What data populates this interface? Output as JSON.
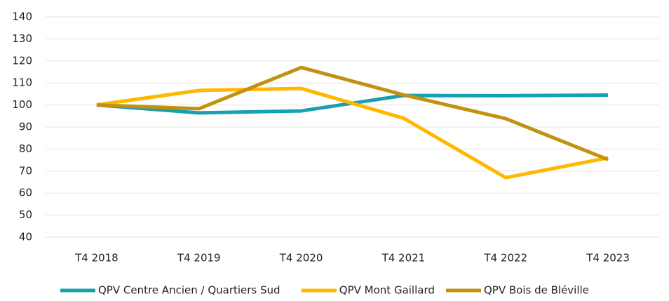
{
  "chart_data": {
    "type": "line",
    "categories": [
      "T4 2018",
      "T4 2019",
      "T4 2020",
      "T4 2021",
      "T4 2022",
      "T4 2023"
    ],
    "series": [
      {
        "name": "QPV Centre Ancien / Quartiers Sud",
        "color": "#1a9fae",
        "values": [
          100,
          96.4,
          97.3,
          104.3,
          104.2,
          104.5
        ]
      },
      {
        "name": "QPV Mont Gaillard",
        "color": "#ffb800",
        "values": [
          100,
          106.6,
          107.5,
          94,
          67,
          76
        ]
      },
      {
        "name": "QPV Bois de Bléville",
        "color": "#c2910f",
        "values": [
          100,
          98.3,
          117,
          104.6,
          93.8,
          75.2
        ]
      }
    ],
    "ylim": [
      40,
      140
    ],
    "yticks": [
      40,
      50,
      60,
      70,
      80,
      90,
      100,
      110,
      120,
      130,
      140
    ],
    "grid": true,
    "legend": "bottom"
  }
}
